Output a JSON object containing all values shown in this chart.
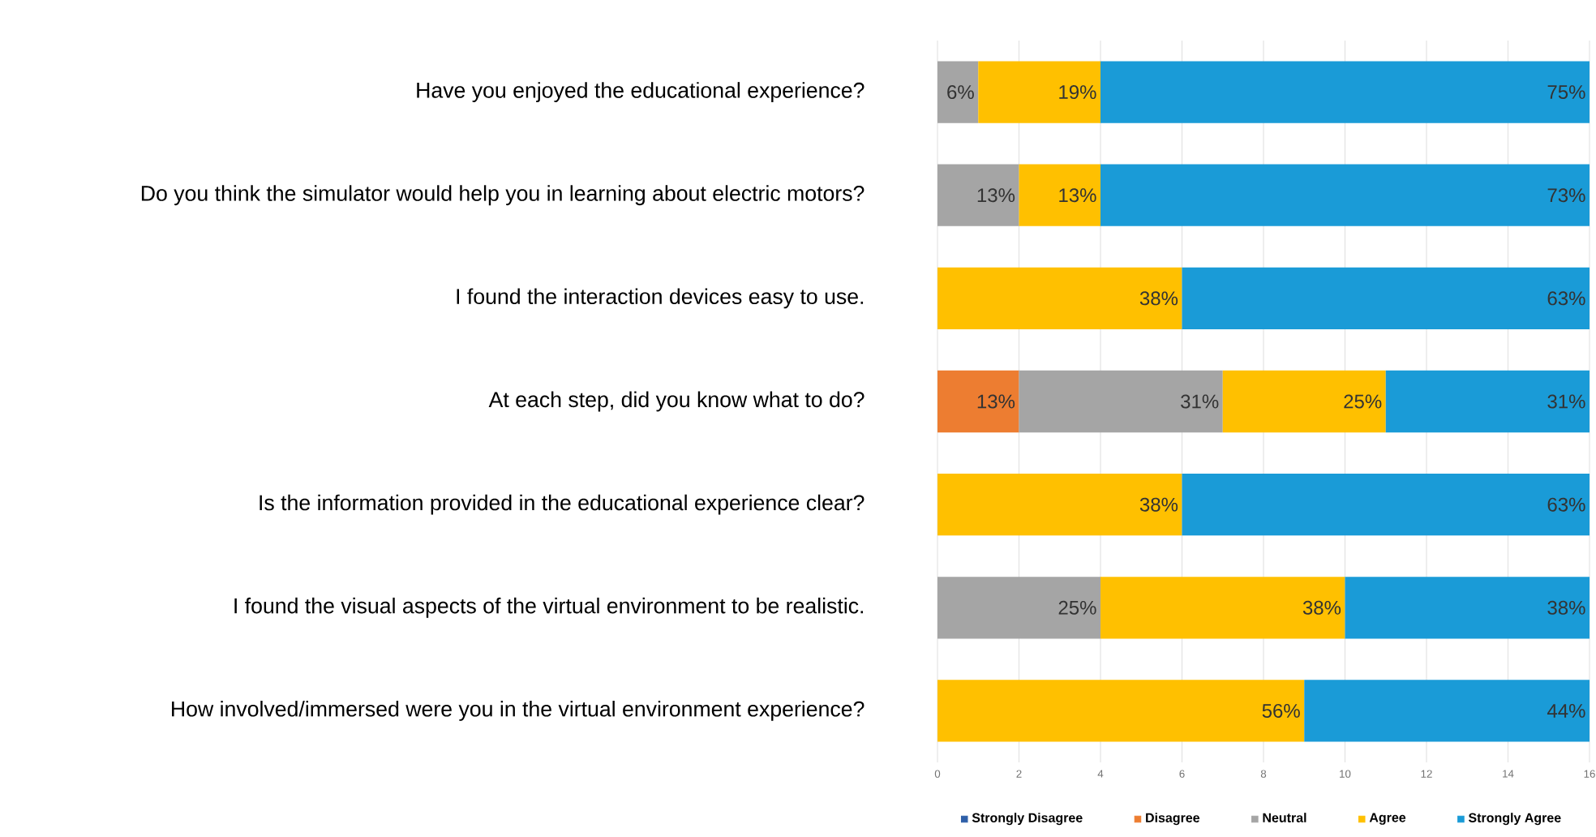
{
  "chart_data": {
    "type": "bar",
    "orientation": "horizontal",
    "stacked": true,
    "categories": [
      "Have you enjoyed the educational experience?",
      "Do you think the simulator would help you in learning about electric motors?",
      "I found the interaction devices easy to use.",
      "At each step, did you know what to do?",
      "Is the information provided in the educational experience clear?",
      "I found the visual aspects of the virtual environment to be realistic.",
      "How involved/immersed were you in the virtual environment experience?"
    ],
    "series": [
      {
        "name": "Strongly Disagree",
        "color": "#2e5fa8",
        "values": [
          null,
          null,
          null,
          null,
          null,
          null,
          null
        ]
      },
      {
        "name": "Disagree",
        "color": "#ed7d31",
        "values": [
          null,
          null,
          null,
          2,
          null,
          null,
          null
        ]
      },
      {
        "name": "Neutral",
        "color": "#a5a5a5",
        "values": [
          1,
          2,
          null,
          5,
          null,
          4,
          null
        ]
      },
      {
        "name": "Agree",
        "color": "#ffc000",
        "values": [
          3,
          2,
          6,
          4,
          6,
          6,
          9
        ]
      },
      {
        "name": "Strongly Agree",
        "color": "#1a9bd7",
        "values": [
          12,
          12,
          10,
          5,
          10,
          6,
          7
        ]
      }
    ],
    "annotations": [
      {
        "text": "6%",
        "x": 1,
        "y": "Have you enjoyed the educational experience?"
      },
      {
        "text": "19%",
        "x": 4,
        "y": "Have you enjoyed the educational experience?"
      },
      {
        "text": "75%",
        "x": 16,
        "y": "Have you enjoyed the educational experience?"
      },
      {
        "text": "13%",
        "x": 2,
        "y": "Do you think the simulator would help you in learning about electric motors?"
      },
      {
        "text": "13%",
        "x": 4,
        "y": "Do you think the simulator would help you in learning about electric motors?"
      },
      {
        "text": "73%",
        "x": 16,
        "y": "Do you think the simulator would help you in learning about electric motors?"
      },
      {
        "text": "38%",
        "x": 6,
        "y": "I found the interaction devices easy to use."
      },
      {
        "text": "63%",
        "x": 16,
        "y": "I found the interaction devices easy to use."
      },
      {
        "text": "13%",
        "x": 2,
        "y": "At each step, did you know what to do?"
      },
      {
        "text": "31%",
        "x": 7,
        "y": "At each step, did you know what to do?"
      },
      {
        "text": "25%",
        "x": 11,
        "y": "At each step, did you know what to do?"
      },
      {
        "text": "31%",
        "x": 16,
        "y": "At each step, did you know what to do?"
      },
      {
        "text": "38%",
        "x": 6,
        "y": "Is the information provided in the educational experience clear?"
      },
      {
        "text": "63%",
        "x": 16,
        "y": "Is the information provided in the educational experience clear?"
      },
      {
        "text": "25%",
        "x": 4,
        "y": "I found the visual aspects of the virtual environment to be realistic."
      },
      {
        "text": "38%",
        "x": 10,
        "y": "I found the visual aspects of the virtual environment to be realistic."
      },
      {
        "text": "38%",
        "x": 16,
        "y": "I found the visual aspects of the virtual environment to be realistic."
      },
      {
        "text": "56%",
        "x": 9,
        "y": "How involved/immersed were you in the virtual environment experience?"
      },
      {
        "text": "44%",
        "x": 16,
        "y": "How involved/immersed were you in the virtual environment experience?"
      }
    ],
    "xlim": [
      0,
      16
    ],
    "xticks": [
      0,
      2,
      4,
      6,
      8,
      10,
      12,
      14,
      16
    ],
    "grid": "x",
    "legend": "bottom"
  }
}
